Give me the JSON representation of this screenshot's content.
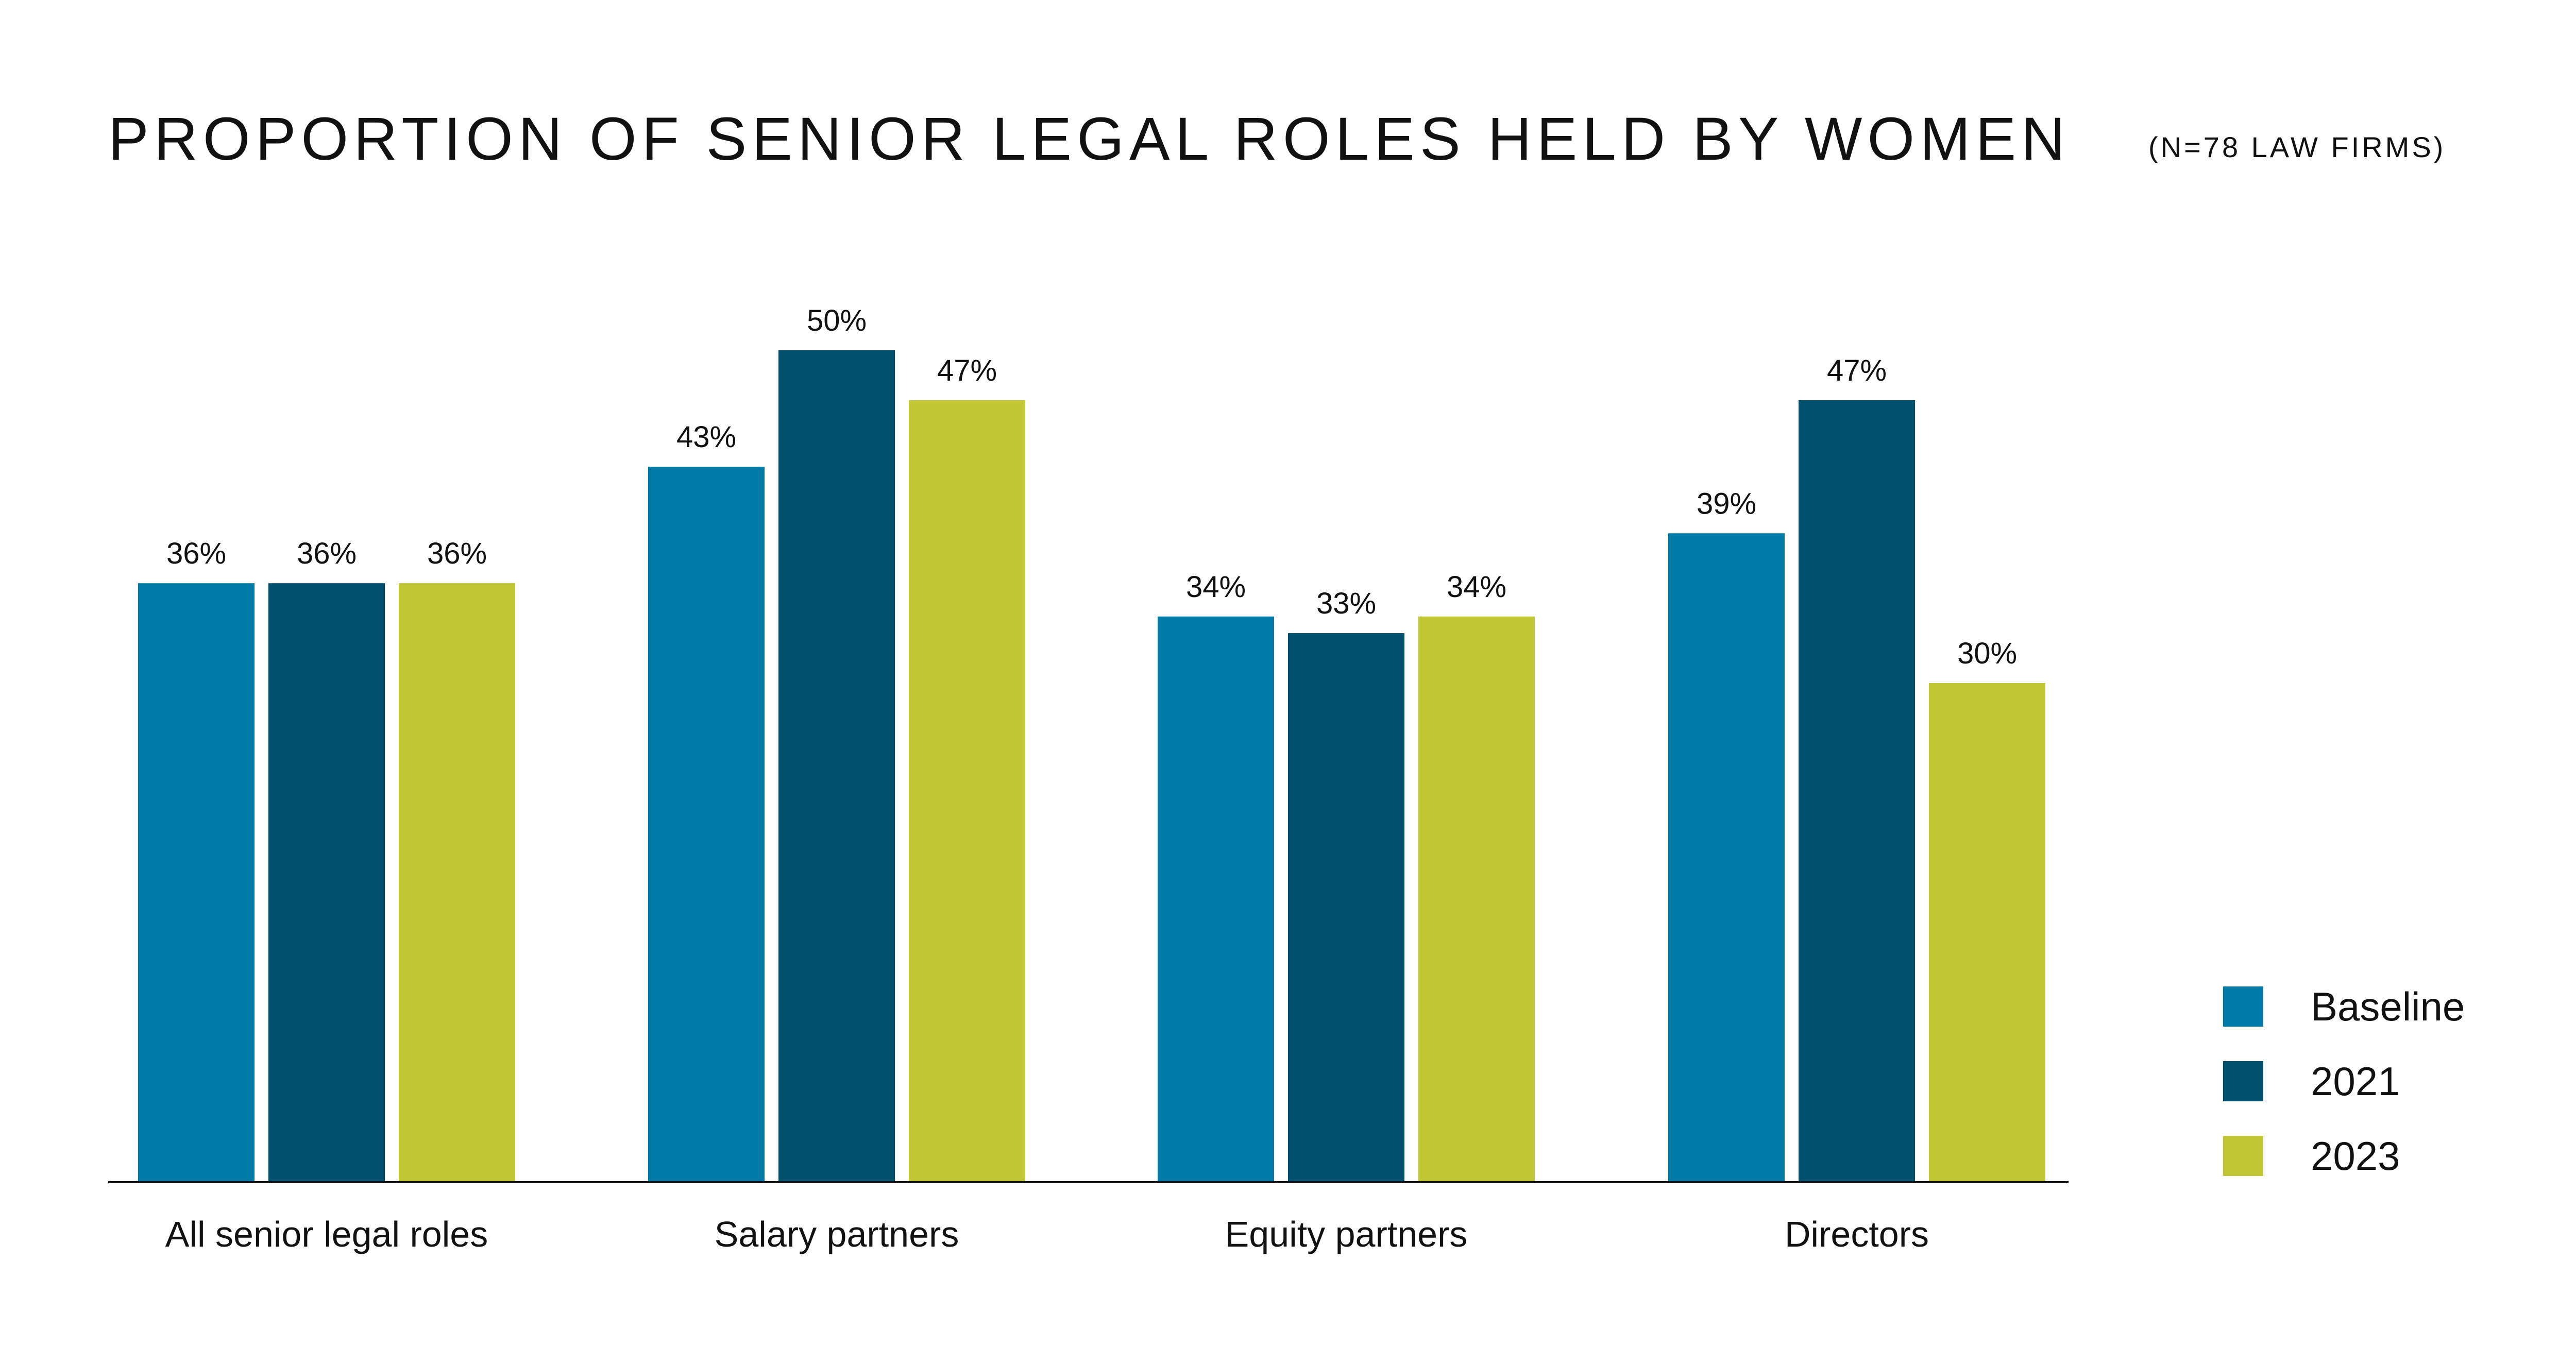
{
  "chart_data": {
    "type": "bar",
    "title": "PROPORTION OF SENIOR LEGAL ROLES HELD BY WOMEN",
    "subtitle": "(N=78 LAW FIRMS)",
    "categories": [
      "All senior legal roles",
      "Salary partners",
      "Equity partners",
      "Directors"
    ],
    "series": [
      {
        "name": "Baseline",
        "color": "#007ba7",
        "values": [
          36,
          43,
          34,
          39
        ],
        "labels": [
          "36%",
          "43%",
          "34%",
          "39%"
        ]
      },
      {
        "name": "2021",
        "color": "#00506e",
        "values": [
          36,
          50,
          33,
          47
        ],
        "labels": [
          "36%",
          "50%",
          "33%",
          "47%"
        ]
      },
      {
        "name": "2023",
        "color": "#c0c634",
        "values": [
          36,
          47,
          34,
          30
        ],
        "labels": [
          "36%",
          "47%",
          "34%",
          "30%"
        ]
      }
    ],
    "ylim": [
      0,
      50
    ],
    "xlabel": "",
    "ylabel": "",
    "legend_position": "bottom-right",
    "grid": false
  }
}
